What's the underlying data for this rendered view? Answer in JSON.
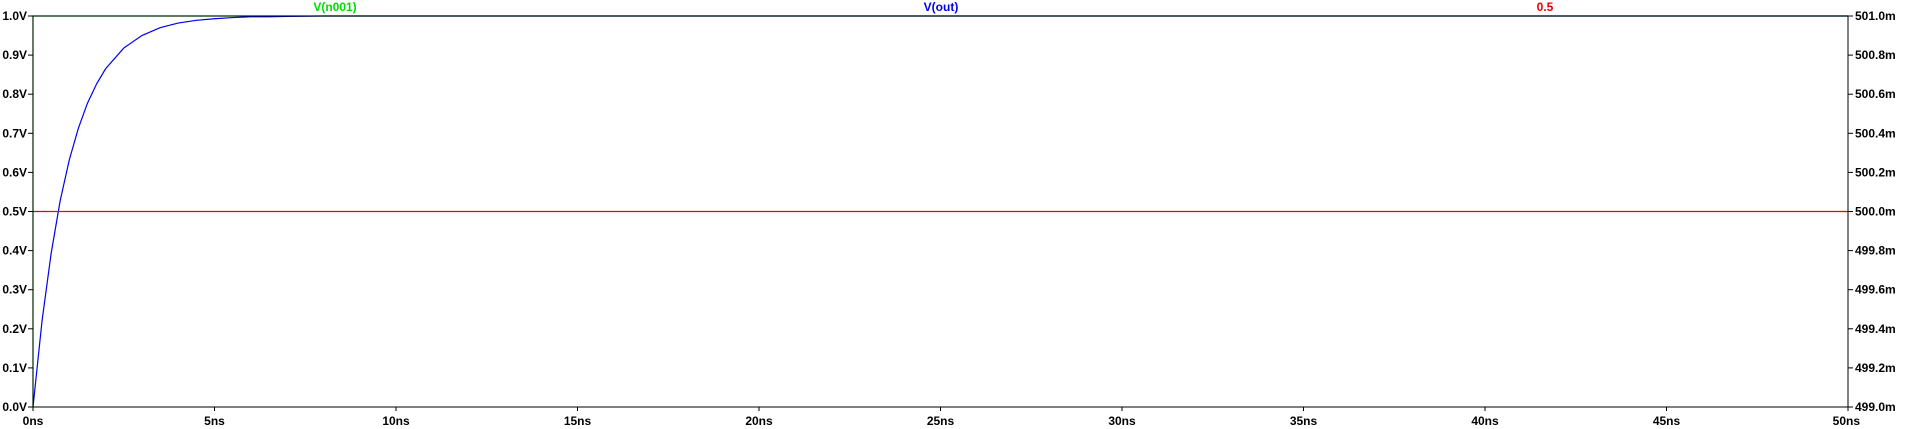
{
  "chart_data": {
    "type": "line",
    "x_unit": "ns",
    "xlim": [
      0,
      50
    ],
    "x_ticks": [
      {
        "value": 0,
        "label": "0ns"
      },
      {
        "value": 5,
        "label": "5ns"
      },
      {
        "value": 10,
        "label": "10ns"
      },
      {
        "value": 15,
        "label": "15ns"
      },
      {
        "value": 20,
        "label": "20ns"
      },
      {
        "value": 25,
        "label": "25ns"
      },
      {
        "value": 30,
        "label": "30ns"
      },
      {
        "value": 35,
        "label": "35ns"
      },
      {
        "value": 40,
        "label": "40ns"
      },
      {
        "value": 45,
        "label": "45ns"
      },
      {
        "value": 50,
        "label": "50ns"
      }
    ],
    "ylim_left": [
      0,
      1.0
    ],
    "y_ticks_left": [
      {
        "value": 0.0,
        "label": "0.0V"
      },
      {
        "value": 0.1,
        "label": "0.1V"
      },
      {
        "value": 0.2,
        "label": "0.2V"
      },
      {
        "value": 0.3,
        "label": "0.3V"
      },
      {
        "value": 0.4,
        "label": "0.4V"
      },
      {
        "value": 0.5,
        "label": "0.5V"
      },
      {
        "value": 0.6,
        "label": "0.6V"
      },
      {
        "value": 0.7,
        "label": "0.7V"
      },
      {
        "value": 0.8,
        "label": "0.8V"
      },
      {
        "value": 0.9,
        "label": "0.9V"
      },
      {
        "value": 1.0,
        "label": "1.0V"
      }
    ],
    "ylim_right": [
      499.0,
      501.0
    ],
    "y_ticks_right": [
      {
        "value": 499.0,
        "label": "499.0m"
      },
      {
        "value": 499.2,
        "label": "499.2m"
      },
      {
        "value": 499.4,
        "label": "499.4m"
      },
      {
        "value": 499.6,
        "label": "499.6m"
      },
      {
        "value": 499.8,
        "label": "499.8m"
      },
      {
        "value": 500.0,
        "label": "500.0m"
      },
      {
        "value": 500.2,
        "label": "500.2m"
      },
      {
        "value": 500.4,
        "label": "500.4m"
      },
      {
        "value": 500.6,
        "label": "500.6m"
      },
      {
        "value": 500.8,
        "label": "500.8m"
      },
      {
        "value": 501.0,
        "label": "501.0m"
      }
    ],
    "grid": false,
    "series": [
      {
        "name": "V(n001)",
        "color": "#00dd00",
        "axis": "left",
        "x": [
          0,
          0,
          50
        ],
        "y": [
          0,
          1.0,
          1.0
        ]
      },
      {
        "name": "V(out)",
        "color": "#0000ee",
        "axis": "left",
        "x": [
          0,
          0.25,
          0.5,
          0.75,
          1.0,
          1.25,
          1.5,
          1.75,
          2.0,
          2.5,
          3.0,
          3.5,
          4.0,
          4.5,
          5.0,
          5.5,
          6.0,
          6.5,
          7.0,
          8.0,
          10,
          15,
          20,
          30,
          40,
          50
        ],
        "y": [
          0,
          0.221,
          0.393,
          0.528,
          0.632,
          0.713,
          0.777,
          0.826,
          0.865,
          0.918,
          0.95,
          0.97,
          0.982,
          0.989,
          0.993,
          0.996,
          0.998,
          0.998,
          0.999,
          1.0,
          1.0,
          1.0,
          1.0,
          1.0,
          1.0,
          1.0
        ]
      },
      {
        "name": "0.5",
        "color": "#ee0000",
        "axis": "left",
        "x": [
          0,
          50
        ],
        "y": [
          0.5,
          0.5
        ]
      }
    ]
  }
}
